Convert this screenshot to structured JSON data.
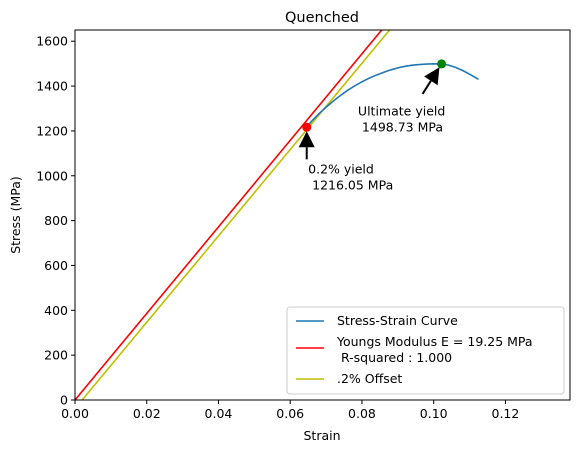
{
  "chart_data": {
    "type": "line",
    "title": "Quenched",
    "xlabel": "Strain",
    "ylabel": "Stress (MPa)",
    "xlim": [
      0,
      0.138
    ],
    "ylim": [
      0,
      1650
    ],
    "xticks": [
      "0.00",
      "0.02",
      "0.04",
      "0.06",
      "0.08",
      "0.10",
      "0.12"
    ],
    "xtick_values": [
      0,
      0.02,
      0.04,
      0.06,
      0.08,
      0.1,
      0.12
    ],
    "yticks": [
      "0",
      "200",
      "400",
      "600",
      "800",
      "1000",
      "1200",
      "1400",
      "1600"
    ],
    "ytick_values": [
      0,
      200,
      400,
      600,
      800,
      1000,
      1200,
      1400,
      1600
    ],
    "grid": false,
    "legend_position": "bottom-right",
    "series": [
      {
        "name": "Stress-Strain Curve",
        "color": "#1f77b4",
        "x": [
          0.0645,
          0.066,
          0.068,
          0.07,
          0.072,
          0.074,
          0.076,
          0.078,
          0.08,
          0.082,
          0.084,
          0.086,
          0.088,
          0.09,
          0.092,
          0.094,
          0.096,
          0.098,
          0.1,
          0.102,
          0.104,
          0.106,
          0.108,
          0.11,
          0.1125
        ],
        "y": [
          1216,
          1244,
          1277,
          1306,
          1333,
          1358,
          1381,
          1401,
          1419,
          1435,
          1449,
          1461,
          1472,
          1481,
          1488,
          1493,
          1496,
          1498,
          1499,
          1498.7,
          1494,
          1484,
          1470,
          1453,
          1430
        ]
      },
      {
        "name": "Youngs Modulus E = 19.25 MPa",
        "name_line2": " R-squared : 1.000",
        "color": "#ff0000",
        "x": [
          0,
          0.0855
        ],
        "y": [
          0,
          1650
        ]
      },
      {
        "name": ".2% Offset",
        "color": "#bfbf00",
        "x": [
          0.002,
          0.0877
        ],
        "y": [
          0,
          1650
        ]
      }
    ],
    "points": [
      {
        "name": "0.2% yield",
        "x": 0.0646,
        "y": 1216.05,
        "color": "#ff0000"
      },
      {
        "name": "Ultimate yield",
        "x": 0.1022,
        "y": 1498.73,
        "color": "#008000"
      }
    ],
    "annotations": [
      {
        "line1": "0.2% yield",
        "line2": "1216.05 MPa",
        "text_x": 0.065,
        "text_y": 1010,
        "arrow_to_x": 0.0646,
        "arrow_to_y": 1216.05
      },
      {
        "line1": "Ultimate yield",
        "line2": "1498.73 MPa",
        "text_x": 0.0825,
        "text_y": 1300,
        "arrow_to_x": 0.1022,
        "arrow_to_y": 1498.73
      }
    ]
  }
}
